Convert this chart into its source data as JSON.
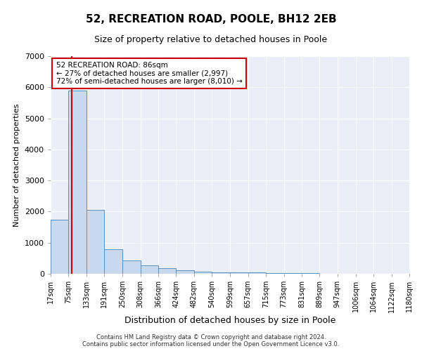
{
  "title": "52, RECREATION ROAD, POOLE, BH12 2EB",
  "subtitle": "Size of property relative to detached houses in Poole",
  "xlabel": "Distribution of detached houses by size in Poole",
  "ylabel": "Number of detached properties",
  "bin_edges": [
    17,
    75,
    133,
    191,
    250,
    308,
    366,
    424,
    482,
    540,
    599,
    657,
    715,
    773,
    831,
    889,
    947,
    1006,
    1064,
    1122,
    1180
  ],
  "bar_heights": [
    1750,
    5900,
    2050,
    800,
    420,
    280,
    170,
    110,
    75,
    55,
    45,
    35,
    25,
    20,
    15,
    10,
    8,
    6,
    5,
    4
  ],
  "bar_color": "#c9d9ed",
  "bar_edge_color": "#5a8fc0",
  "property_size": 86,
  "annotation_title": "52 RECREATION ROAD: 86sqm",
  "annotation_line1": "← 27% of detached houses are smaller (2,997)",
  "annotation_line2": "72% of semi-detached houses are larger (8,010) →",
  "red_line_color": "#cc0000",
  "annotation_box_edge": "#cc0000",
  "ylim": [
    0,
    7000
  ],
  "yticks": [
    0,
    1000,
    2000,
    3000,
    4000,
    5000,
    6000,
    7000
  ],
  "footer_line1": "Contains HM Land Registry data © Crown copyright and database right 2024.",
  "footer_line2": "Contains public sector information licensed under the Open Government Licence v3.0.",
  "bg_color": "#ffffff",
  "plot_bg_color": "#eaeff7",
  "title_fontsize": 11,
  "subtitle_fontsize": 9,
  "ylabel_fontsize": 8,
  "xlabel_fontsize": 9,
  "tick_fontsize": 7,
  "footer_fontsize": 6
}
